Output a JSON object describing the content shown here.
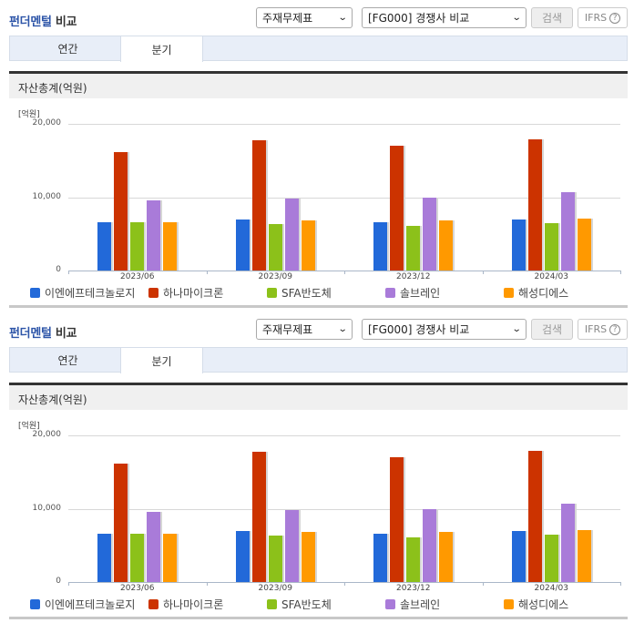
{
  "header": {
    "title_part1": "펀더멘털",
    "title_part2": "비교",
    "select_statement": "주재무제표",
    "select_group": "[FG000] 경쟁사 비교",
    "search_button": "검색",
    "ifrs_button": "IFRS",
    "help_icon": "?"
  },
  "tabs": [
    {
      "label": "연간",
      "active": false
    },
    {
      "label": "분기",
      "active": true
    }
  ],
  "section_title": "자산총계(억원)",
  "chart_data": {
    "type": "bar",
    "title": "자산총계(억원)",
    "unit_label": "[억원]",
    "xlabel": "",
    "ylabel": "억원",
    "ylim": [
      0,
      20000
    ],
    "yticks": [
      "0",
      "10,000",
      "20,000"
    ],
    "grid": true,
    "legend_position": "bottom",
    "categories": [
      "2023/06",
      "2023/09",
      "2023/12",
      "2024/03"
    ],
    "series": [
      {
        "name": "이엔에프테크놀로지",
        "color": "#2269d9",
        "values": [
          6630,
          7000,
          6580,
          7000
        ]
      },
      {
        "name": "하나마이크론",
        "color": "#cc3300",
        "values": [
          16200,
          17740,
          17080,
          17860
        ]
      },
      {
        "name": "SFA반도체",
        "color": "#8cc11a",
        "values": [
          6630,
          6330,
          6130,
          6500
        ]
      },
      {
        "name": "솔브레인",
        "color": "#a97bd9",
        "values": [
          9590,
          9840,
          9960,
          10700
        ]
      },
      {
        "name": "해성디에스",
        "color": "#ff9900",
        "values": [
          6630,
          6870,
          6870,
          7120
        ]
      }
    ]
  }
}
